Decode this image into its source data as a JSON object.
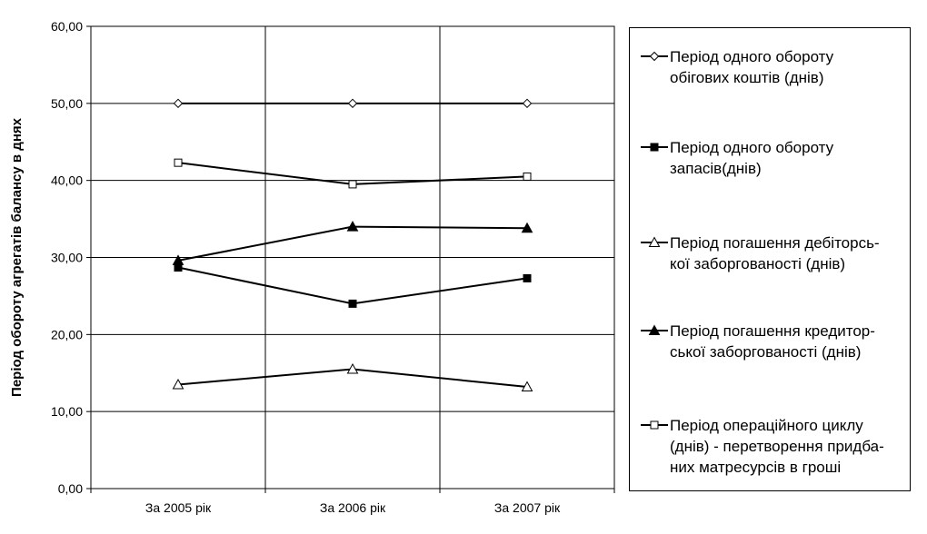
{
  "chart_data": {
    "type": "line",
    "ylabel": "Період обороту агрегатів балансу в днях",
    "xlabel": "",
    "categories": [
      "За 2005 рік",
      "За 2006 рік",
      "За 2007 рік"
    ],
    "ylim": [
      0,
      60
    ],
    "yticks": [
      "0,00",
      "10,00",
      "20,00",
      "30,00",
      "40,00",
      "50,00",
      "60,00"
    ],
    "grid": true,
    "legend_position": "right",
    "series": [
      {
        "name": "Період одного обороту обігових коштів (днів)",
        "name_lines": [
          "Період одного обороту",
          "обігових коштів (днів)"
        ],
        "marker": "diamond-open",
        "values": [
          50.0,
          50.0,
          50.0
        ]
      },
      {
        "name": "Період одного обороту запасів(днів)",
        "name_lines": [
          "Період одного обороту",
          "запасів(днів)"
        ],
        "marker": "square-filled",
        "values": [
          28.7,
          24.0,
          27.3
        ]
      },
      {
        "name": "Період погашення дебіторської заборгованості (днів)",
        "name_lines": [
          "Період погашення дебіторсь-",
          "кої заборгованості (днів)"
        ],
        "marker": "triangle-open",
        "values": [
          13.5,
          15.5,
          13.2
        ]
      },
      {
        "name": "Період погашення кредиторської заборгованості (днів)",
        "name_lines": [
          "Період погашення кредитор-",
          "ської заборгованості (днів)"
        ],
        "marker": "triangle-filled",
        "values": [
          29.6,
          34.0,
          33.8
        ]
      },
      {
        "name": "Період операційного циклу (днів) - перетворення придбаних матресурсів в гроші",
        "name_lines": [
          "Період операційного циклу",
          "(днів) - перетворення придба-",
          "них матресурсів в гроші"
        ],
        "marker": "square-open",
        "values": [
          42.3,
          39.5,
          40.5
        ]
      }
    ]
  }
}
